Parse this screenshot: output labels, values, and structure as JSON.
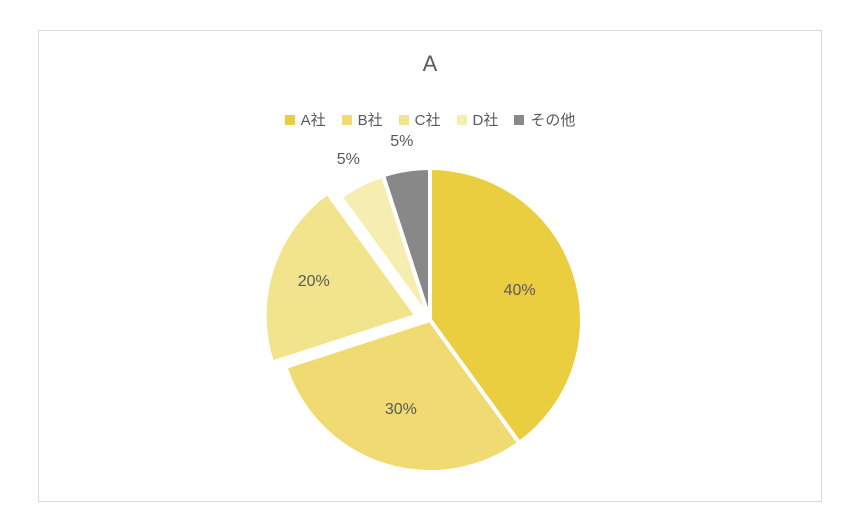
{
  "chart": {
    "type": "pie",
    "title": "A",
    "title_fontsize": 22,
    "title_color": "#595959",
    "border_color": "#d9d9d9",
    "background_color": "#ffffff",
    "legend": {
      "fontsize": 15,
      "text_color": "#595959",
      "items": [
        {
          "label": "A社",
          "color": "#eace3f"
        },
        {
          "label": "B社",
          "color": "#efdb72"
        },
        {
          "label": "C社",
          "color": "#f2e38d"
        },
        {
          "label": "D社",
          "color": "#f6edb0"
        },
        {
          "label": "その他",
          "color": "#888888"
        }
      ]
    },
    "pie": {
      "radius": 152,
      "slice_gap_color": "#ffffff",
      "slice_gap_width": 4,
      "start_angle_deg": 0,
      "direction": "clockwise",
      "slices": [
        {
          "name": "A社",
          "value": 40,
          "color": "#eace3f",
          "label": "40%",
          "explode": 0
        },
        {
          "name": "B社",
          "value": 30,
          "color": "#efdb72",
          "label": "30%",
          "explode": 0
        },
        {
          "name": "C社",
          "value": 20,
          "color": "#f2e38d",
          "label": "20%",
          "explode": 14
        },
        {
          "name": "D社",
          "value": 5,
          "color": "#f6edb0",
          "label": "5%",
          "explode": 0
        },
        {
          "name": "その他",
          "value": 5,
          "color": "#888888",
          "label": "5%",
          "explode": 0
        }
      ],
      "label_fontsize": 16,
      "label_color": "#595959",
      "label_radius_factor_inside": 0.62,
      "label_radius_offset_outside": 28
    }
  }
}
